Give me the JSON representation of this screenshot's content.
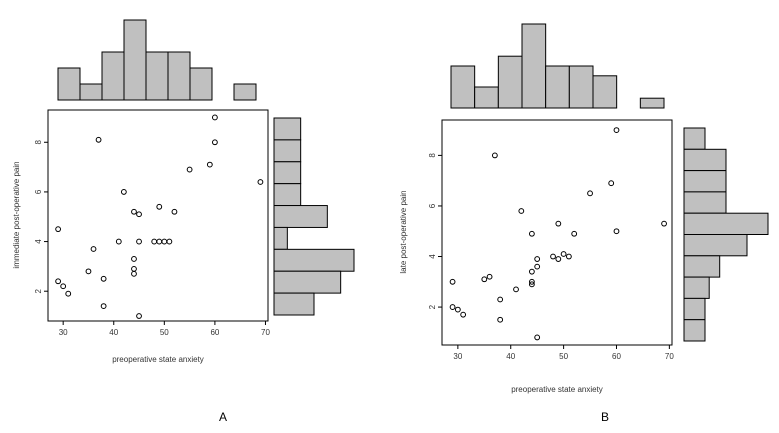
{
  "chart_data": [
    {
      "type": "scatter",
      "panel_label": "A",
      "xlabel": "preoperative state anxiety",
      "ylabel": "immediate post-operative pain",
      "x_ticks": [
        30,
        40,
        50,
        60,
        70
      ],
      "y_ticks": [
        2,
        4,
        6,
        8
      ],
      "xlim": [
        27,
        70.5
      ],
      "ylim": [
        0.8,
        9.3
      ],
      "points": [
        [
          29,
          4.5
        ],
        [
          29,
          2.4
        ],
        [
          30,
          2.2
        ],
        [
          31,
          1.9
        ],
        [
          35,
          2.8
        ],
        [
          36,
          3.7
        ],
        [
          37,
          8.1
        ],
        [
          38,
          1.4
        ],
        [
          38,
          2.5
        ],
        [
          41,
          4.0
        ],
        [
          42,
          6.0
        ],
        [
          44,
          5.2
        ],
        [
          44,
          3.3
        ],
        [
          44,
          2.9
        ],
        [
          44,
          2.7
        ],
        [
          45,
          5.1
        ],
        [
          45,
          4.0
        ],
        [
          45,
          1.0
        ],
        [
          48,
          4.0
        ],
        [
          49,
          5.4
        ],
        [
          49,
          4.0
        ],
        [
          50,
          4.0
        ],
        [
          51,
          4.0
        ],
        [
          52,
          5.2
        ],
        [
          55,
          6.9
        ],
        [
          59,
          7.1
        ],
        [
          60,
          9.0
        ],
        [
          60,
          8.0
        ],
        [
          69,
          6.4
        ]
      ],
      "top_histogram_counts": [
        2,
        1,
        3,
        5,
        3,
        3,
        2,
        0,
        1
      ],
      "right_histogram_counts": [
        2,
        2,
        2,
        2,
        4,
        1,
        6,
        5,
        3
      ],
      "legend": "none"
    },
    {
      "type": "scatter",
      "panel_label": "B",
      "xlabel": "preoperative state anxiety",
      "ylabel": "late post-operative pain",
      "x_ticks": [
        30,
        40,
        50,
        60,
        70
      ],
      "y_ticks": [
        2,
        4,
        6,
        8
      ],
      "xlim": [
        27,
        70.5
      ],
      "ylim": [
        0.5,
        9.4
      ],
      "points": [
        [
          29,
          3.0
        ],
        [
          29,
          2.0
        ],
        [
          30,
          1.9
        ],
        [
          31,
          1.7
        ],
        [
          35,
          3.1
        ],
        [
          36,
          3.2
        ],
        [
          37,
          8.0
        ],
        [
          38,
          2.3
        ],
        [
          38,
          1.5
        ],
        [
          41,
          2.7
        ],
        [
          42,
          5.8
        ],
        [
          44,
          4.9
        ],
        [
          44,
          3.4
        ],
        [
          44,
          3.0
        ],
        [
          44,
          2.9
        ],
        [
          45,
          3.9
        ],
        [
          45,
          3.6
        ],
        [
          45,
          0.8
        ],
        [
          48,
          4.0
        ],
        [
          49,
          5.3
        ],
        [
          49,
          3.9
        ],
        [
          50,
          4.1
        ],
        [
          51,
          4.0
        ],
        [
          52,
          4.9
        ],
        [
          55,
          6.5
        ],
        [
          59,
          6.9
        ],
        [
          60,
          9.0
        ],
        [
          60,
          5.0
        ],
        [
          69,
          5.3
        ]
      ],
      "top_histogram_counts": [
        3,
        1.5,
        3.7,
        6,
        3,
        3,
        2.3,
        0,
        0.7
      ],
      "right_histogram_counts": [
        1,
        2,
        2,
        2,
        4,
        3,
        1.7,
        1.2,
        1,
        1
      ],
      "legend": "none"
    }
  ]
}
